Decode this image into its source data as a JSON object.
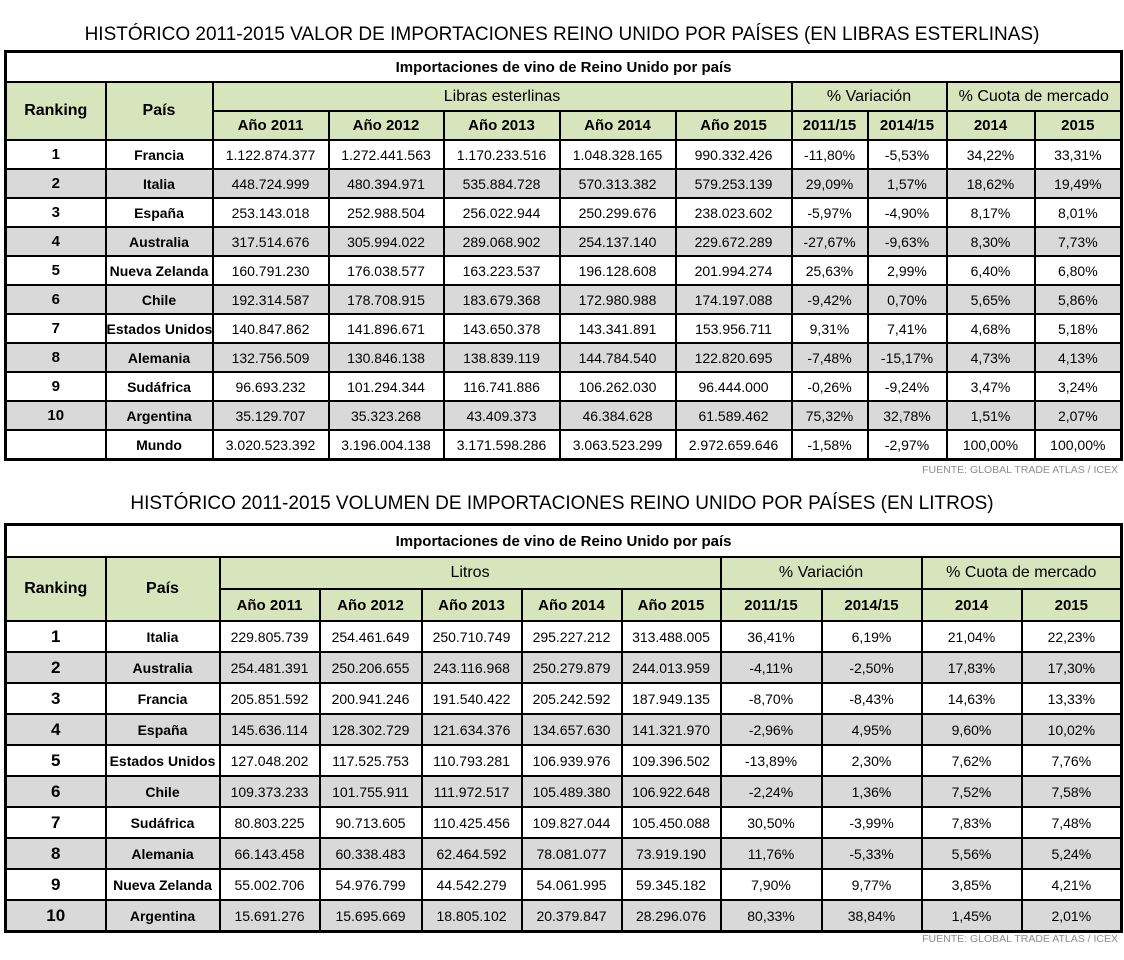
{
  "value_table": {
    "heading": "HISTÓRICO 2011-2015 VALOR DE IMPORTACIONES REINO UNIDO POR PAÍSES (EN LIBRAS ESTERLINAS)",
    "caption": "Importaciones de vino de Reino Unido por país",
    "col_ranking": "Ranking",
    "col_pais": "País",
    "group_units": "Libras esterlinas",
    "group_variation": "% Variación",
    "group_share": "% Cuota de mercado",
    "subheaders": [
      "Año 2011",
      "Año 2012",
      "Año 2013",
      "Año 2014",
      "Año 2015",
      "2011/15",
      "2014/15",
      "2014",
      "2015"
    ],
    "rows": [
      {
        "rank": "1",
        "country": "Francia",
        "values": [
          "1.122.874.377",
          "1.272.441.563",
          "1.170.233.516",
          "1.048.328.165",
          "990.332.426",
          "-11,80%",
          "-5,53%",
          "34,22%",
          "33,31%"
        ]
      },
      {
        "rank": "2",
        "country": "Italia",
        "values": [
          "448.724.999",
          "480.394.971",
          "535.884.728",
          "570.313.382",
          "579.253.139",
          "29,09%",
          "1,57%",
          "18,62%",
          "19,49%"
        ]
      },
      {
        "rank": "3",
        "country": "España",
        "values": [
          "253.143.018",
          "252.988.504",
          "256.022.944",
          "250.299.676",
          "238.023.602",
          "-5,97%",
          "-4,90%",
          "8,17%",
          "8,01%"
        ]
      },
      {
        "rank": "4",
        "country": "Australia",
        "values": [
          "317.514.676",
          "305.994.022",
          "289.068.902",
          "254.137.140",
          "229.672.289",
          "-27,67%",
          "-9,63%",
          "8,30%",
          "7,73%"
        ]
      },
      {
        "rank": "5",
        "country": "Nueva Zelanda",
        "values": [
          "160.791.230",
          "176.038.577",
          "163.223.537",
          "196.128.608",
          "201.994.274",
          "25,63%",
          "2,99%",
          "6,40%",
          "6,80%"
        ]
      },
      {
        "rank": "6",
        "country": "Chile",
        "values": [
          "192.314.587",
          "178.708.915",
          "183.679.368",
          "172.980.988",
          "174.197.088",
          "-9,42%",
          "0,70%",
          "5,65%",
          "5,86%"
        ]
      },
      {
        "rank": "7",
        "country": "Estados Unidos",
        "values": [
          "140.847.862",
          "141.896.671",
          "143.650.378",
          "143.341.891",
          "153.956.711",
          "9,31%",
          "7,41%",
          "4,68%",
          "5,18%"
        ]
      },
      {
        "rank": "8",
        "country": "Alemania",
        "values": [
          "132.756.509",
          "130.846.138",
          "138.839.119",
          "144.784.540",
          "122.820.695",
          "-7,48%",
          "-15,17%",
          "4,73%",
          "4,13%"
        ]
      },
      {
        "rank": "9",
        "country": "Sudáfrica",
        "values": [
          "96.693.232",
          "101.294.344",
          "116.741.886",
          "106.262.030",
          "96.444.000",
          "-0,26%",
          "-9,24%",
          "3,47%",
          "3,24%"
        ]
      },
      {
        "rank": "10",
        "country": "Argentina",
        "values": [
          "35.129.707",
          "35.323.268",
          "43.409.373",
          "46.384.628",
          "61.589.462",
          "75,32%",
          "32,78%",
          "1,51%",
          "2,07%"
        ]
      },
      {
        "rank": "",
        "country": "Mundo",
        "values": [
          "3.020.523.392",
          "3.196.004.138",
          "3.171.598.286",
          "3.063.523.299",
          "2.972.659.646",
          "-1,58%",
          "-2,97%",
          "100,00%",
          "100,00%"
        ]
      }
    ],
    "source": "FUENTE: GLOBAL TRADE ATLAS / ICEX"
  },
  "volume_table": {
    "heading": "HISTÓRICO 2011-2015 VOLUMEN DE IMPORTACIONES REINO UNIDO POR PAÍSES (EN LITROS)",
    "caption": "Importaciones de vino de Reino Unido por país",
    "col_ranking": "Ranking",
    "col_pais": "País",
    "group_units": "Litros",
    "group_variation": "% Variación",
    "group_share": "% Cuota de mercado",
    "subheaders": [
      "Año 2011",
      "Año 2012",
      "Año 2013",
      "Año 2014",
      "Año 2015",
      "2011/15",
      "2014/15",
      "2014",
      "2015"
    ],
    "rows": [
      {
        "rank": "1",
        "country": "Italia",
        "values": [
          "229.805.739",
          "254.461.649",
          "250.710.749",
          "295.227.212",
          "313.488.005",
          "36,41%",
          "6,19%",
          "21,04%",
          "22,23%"
        ]
      },
      {
        "rank": "2",
        "country": "Australia",
        "values": [
          "254.481.391",
          "250.206.655",
          "243.116.968",
          "250.279.879",
          "244.013.959",
          "-4,11%",
          "-2,50%",
          "17,83%",
          "17,30%"
        ]
      },
      {
        "rank": "3",
        "country": "Francia",
        "values": [
          "205.851.592",
          "200.941.246",
          "191.540.422",
          "205.242.592",
          "187.949.135",
          "-8,70%",
          "-8,43%",
          "14,63%",
          "13,33%"
        ]
      },
      {
        "rank": "4",
        "country": "España",
        "values": [
          "145.636.114",
          "128.302.729",
          "121.634.376",
          "134.657.630",
          "141.321.970",
          "-2,96%",
          "4,95%",
          "9,60%",
          "10,02%"
        ]
      },
      {
        "rank": "5",
        "country": "Estados Unidos",
        "values": [
          "127.048.202",
          "117.525.753",
          "110.793.281",
          "106.939.976",
          "109.396.502",
          "-13,89%",
          "2,30%",
          "7,62%",
          "7,76%"
        ]
      },
      {
        "rank": "6",
        "country": "Chile",
        "values": [
          "109.373.233",
          "101.755.911",
          "111.972.517",
          "105.489.380",
          "106.922.648",
          "-2,24%",
          "1,36%",
          "7,52%",
          "7,58%"
        ]
      },
      {
        "rank": "7",
        "country": "Sudáfrica",
        "values": [
          "80.803.225",
          "90.713.605",
          "110.425.456",
          "109.827.044",
          "105.450.088",
          "30,50%",
          "-3,99%",
          "7,83%",
          "7,48%"
        ]
      },
      {
        "rank": "8",
        "country": "Alemania",
        "values": [
          "66.143.458",
          "60.338.483",
          "62.464.592",
          "78.081.077",
          "73.919.190",
          "11,76%",
          "-5,33%",
          "5,56%",
          "5,24%"
        ]
      },
      {
        "rank": "9",
        "country": "Nueva Zelanda",
        "values": [
          "55.002.706",
          "54.976.799",
          "44.542.279",
          "54.061.995",
          "59.345.182",
          "7,90%",
          "9,77%",
          "3,85%",
          "4,21%"
        ]
      },
      {
        "rank": "10",
        "country": "Argentina",
        "values": [
          "15.691.276",
          "15.695.669",
          "18.805.102",
          "20.379.847",
          "28.296.076",
          "80,33%",
          "38,84%",
          "1,45%",
          "2,01%"
        ]
      }
    ],
    "source": "FUENTE: GLOBAL TRADE ATLAS / ICEX"
  },
  "colors": {
    "header_bg": "#d8e4bc",
    "alt_row_bg": "#d9d9d9",
    "source_text": "#8c8c8c"
  }
}
